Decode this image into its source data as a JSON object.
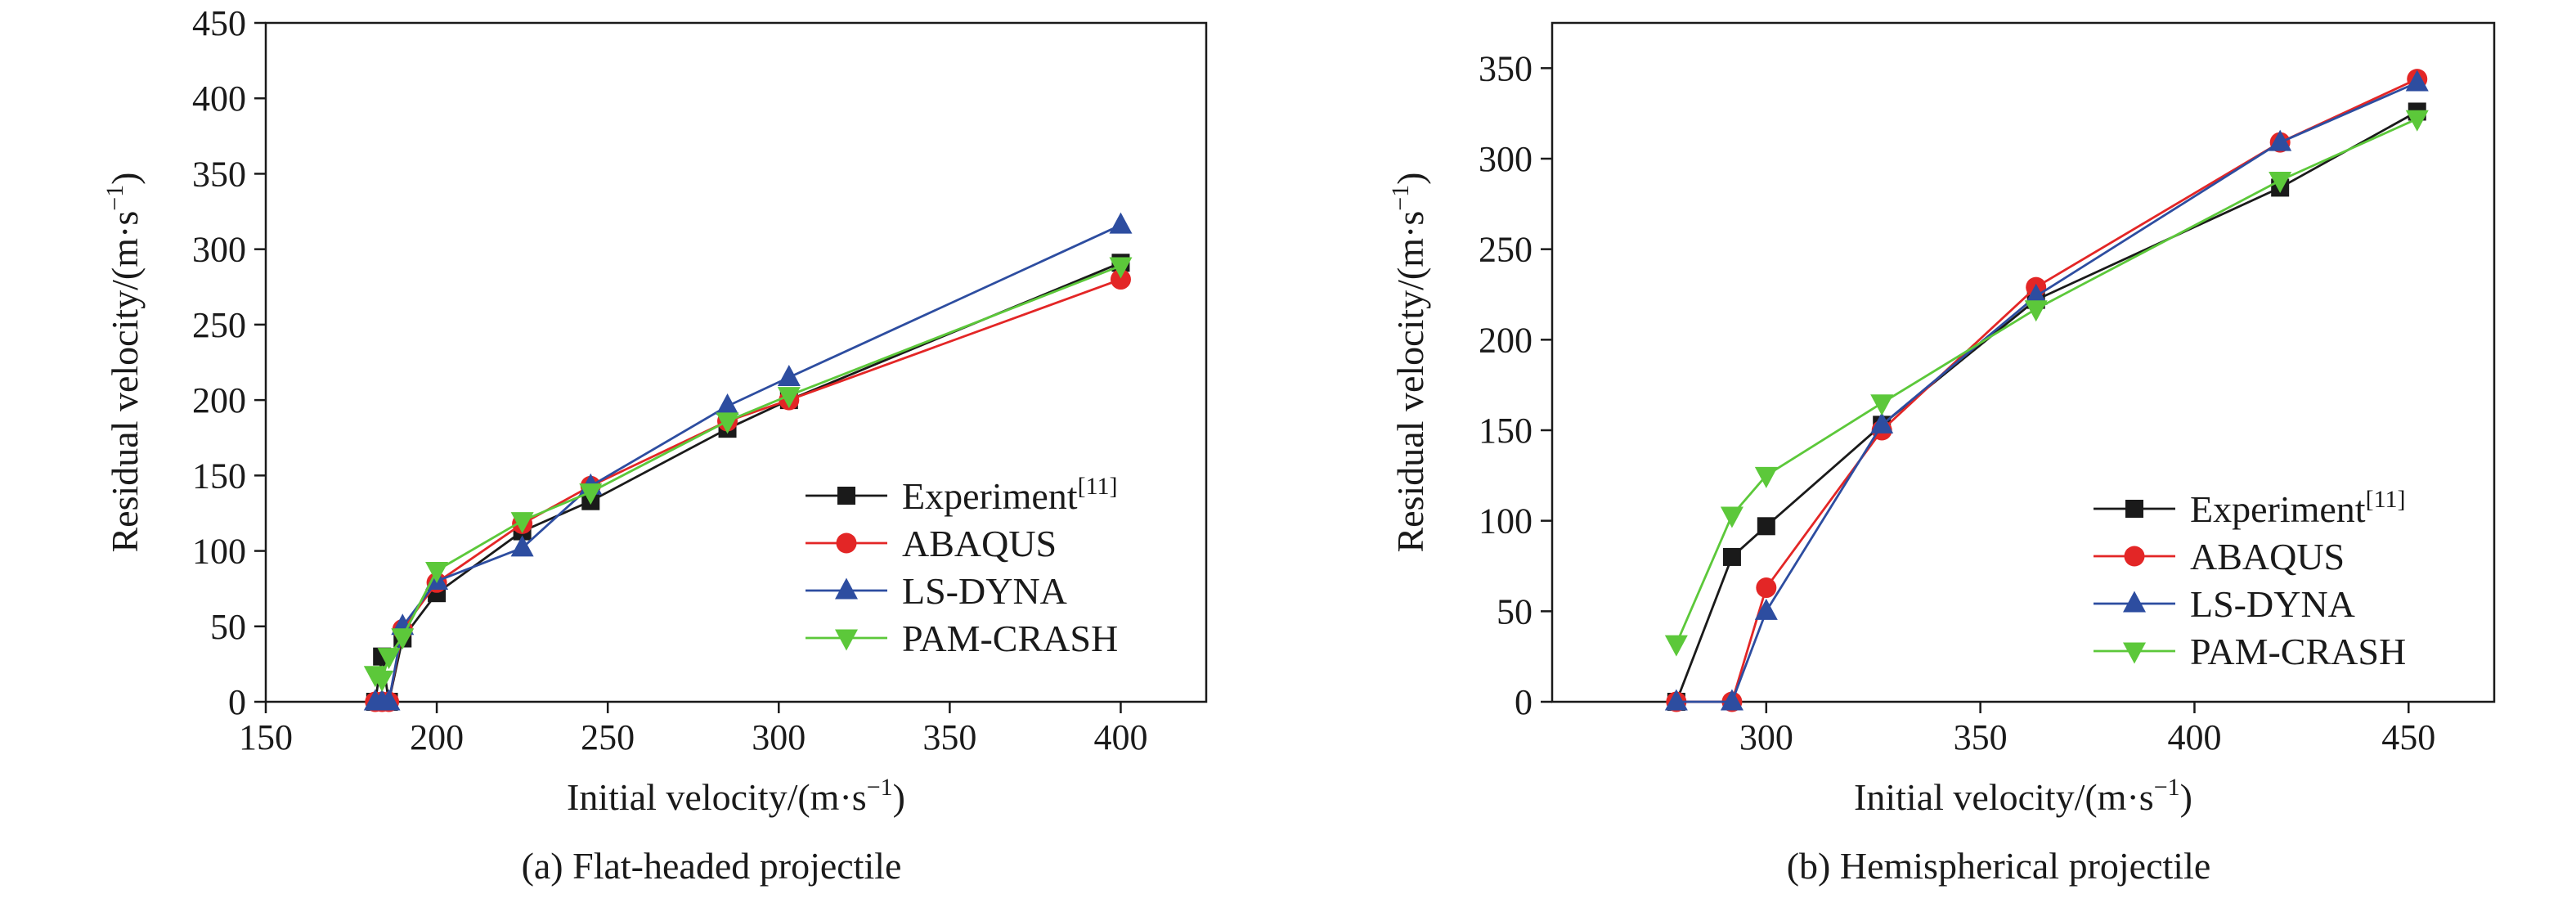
{
  "chart_data": [
    {
      "type": "line",
      "caption": "(a) Flat-headed projectile",
      "xlabel": "Initial velocity/(m·s",
      "xlabel_sup": "−1",
      "xlabel_end": ")",
      "ylabel": "Residual velocity/(m·s",
      "ylabel_sup": "−1",
      "ylabel_end": ")",
      "xlim": [
        150,
        425
      ],
      "ylim": [
        0,
        450
      ],
      "xticks": [
        150,
        200,
        250,
        300,
        350,
        400
      ],
      "yticks": [
        0,
        50,
        100,
        150,
        200,
        250,
        300,
        350,
        400,
        450
      ],
      "legend": {
        "position": "lower-right"
      },
      "series": [
        {
          "name": "Experiment",
          "ref": "[11]",
          "marker": "square",
          "color": "#1a1a1a",
          "x": [
            182,
            184,
            186,
            190,
            200,
            225,
            245,
            285,
            303,
            400
          ],
          "y": [
            0,
            30,
            0,
            42,
            72,
            113,
            133,
            181,
            200,
            291
          ]
        },
        {
          "name": "ABAQUS",
          "ref": "",
          "marker": "circle",
          "color": "#e32626",
          "x": [
            182,
            184,
            186,
            190,
            200,
            225,
            245,
            285,
            303,
            400
          ],
          "y": [
            0,
            0,
            0,
            48,
            79,
            118,
            143,
            186,
            200,
            280
          ]
        },
        {
          "name": "LS-DYNA",
          "ref": "",
          "marker": "triangle-up",
          "color": "#2d4da0",
          "x": [
            182,
            184,
            186,
            190,
            200,
            225,
            245,
            285,
            303,
            400
          ],
          "y": [
            0,
            0,
            0,
            50,
            80,
            102,
            143,
            196,
            215,
            316
          ]
        },
        {
          "name": "PAM-CRASH",
          "ref": "",
          "marker": "triangle-down",
          "color": "#5cc83a",
          "x": [
            182,
            184,
            186,
            190,
            200,
            225,
            245,
            285,
            303,
            400
          ],
          "y": [
            18,
            15,
            30,
            43,
            87,
            120,
            139,
            186,
            203,
            289
          ]
        }
      ]
    },
    {
      "type": "line",
      "caption": "(b) Hemispherical projectile",
      "xlabel": "Initial velocity/(m·s",
      "xlabel_sup": "−1",
      "xlabel_end": ")",
      "ylabel": "Residual velocity/(m·s",
      "ylabel_sup": "−1",
      "ylabel_end": ")",
      "xlim": [
        250,
        470
      ],
      "ylim": [
        0,
        375
      ],
      "xticks": [
        300,
        350,
        400,
        450
      ],
      "yticks": [
        0,
        50,
        100,
        150,
        200,
        250,
        300,
        350
      ],
      "legend": {
        "position": "lower-right"
      },
      "series": [
        {
          "name": "Experiment",
          "ref": "[11]",
          "marker": "square",
          "color": "#1a1a1a",
          "x": [
            279,
            292,
            300,
            327,
            363,
            420,
            452
          ],
          "y": [
            0,
            80,
            97,
            153,
            222,
            284,
            326
          ]
        },
        {
          "name": "ABAQUS",
          "ref": "",
          "marker": "circle",
          "color": "#e32626",
          "x": [
            279,
            292,
            300,
            327,
            363,
            420,
            452
          ],
          "y": [
            0,
            0,
            63,
            150,
            229,
            309,
            344
          ]
        },
        {
          "name": "LS-DYNA",
          "ref": "",
          "marker": "triangle-up",
          "color": "#2d4da0",
          "x": [
            279,
            292,
            300,
            327,
            363,
            420,
            452
          ],
          "y": [
            0,
            0,
            50,
            153,
            224,
            309,
            342
          ]
        },
        {
          "name": "PAM-CRASH",
          "ref": "",
          "marker": "triangle-down",
          "color": "#5cc83a",
          "x": [
            279,
            292,
            300,
            327,
            363,
            420,
            452
          ],
          "y": [
            32,
            103,
            125,
            165,
            217,
            288,
            322
          ]
        }
      ]
    }
  ]
}
